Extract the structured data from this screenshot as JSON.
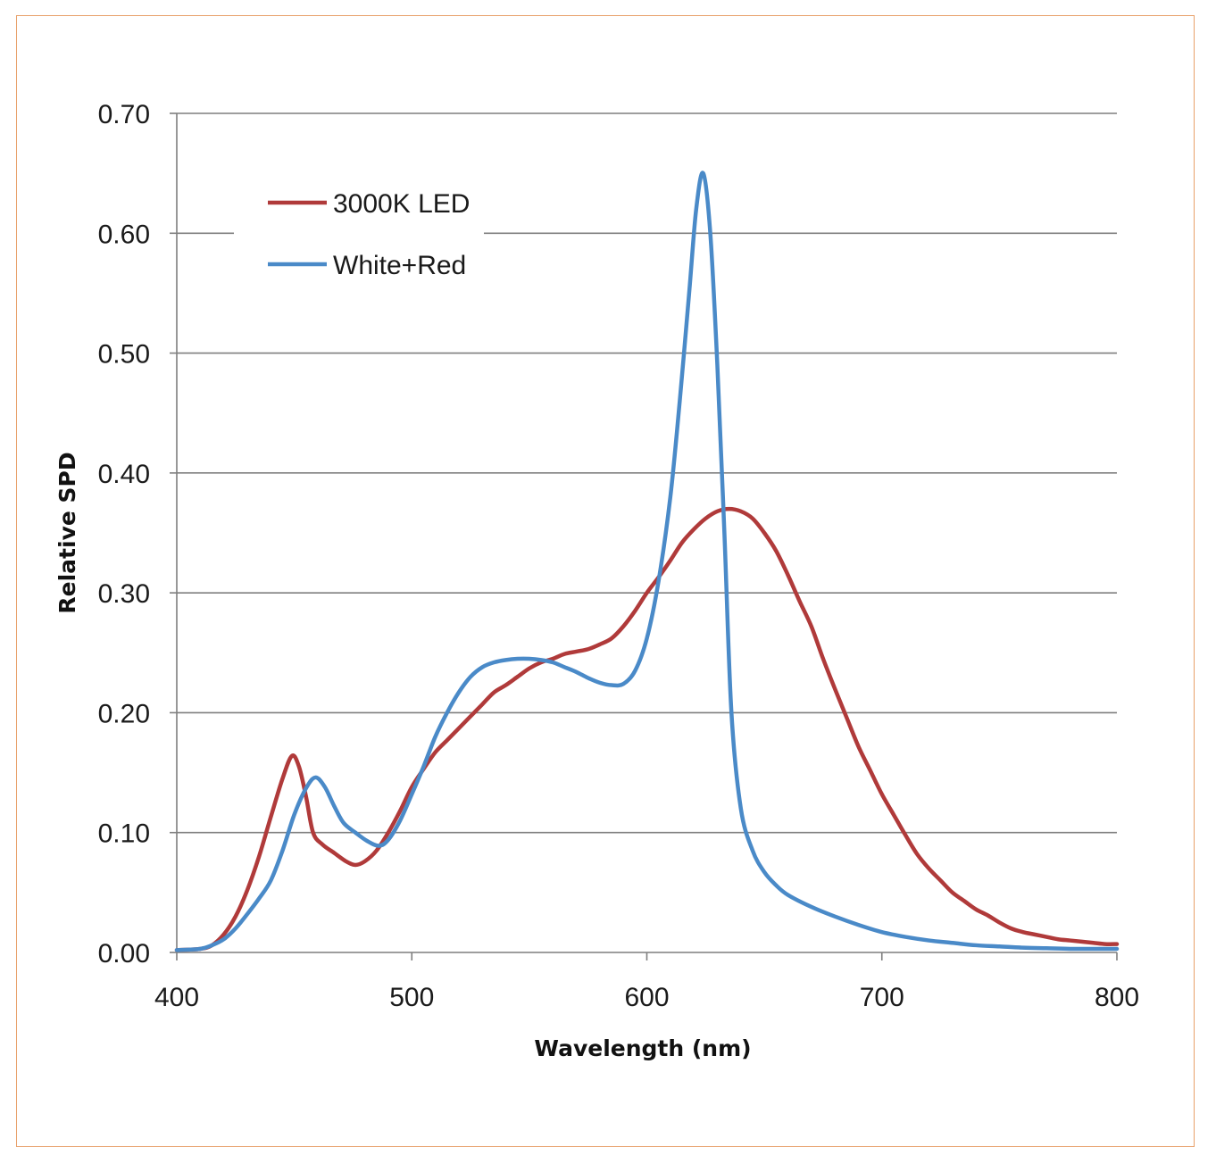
{
  "chart_data": {
    "type": "line",
    "xlabel": "Wavelength (nm)",
    "ylabel": "Relative SPD",
    "xlim": [
      400,
      800
    ],
    "ylim": [
      0,
      0.7
    ],
    "x_ticks": [
      "400",
      "500",
      "600",
      "700",
      "800"
    ],
    "y_ticks": [
      "0.00",
      "0.10",
      "0.20",
      "0.30",
      "0.40",
      "0.50",
      "0.60",
      "0.70"
    ],
    "grid": "horizontal",
    "legend_position": "top-left",
    "series": [
      {
        "name": "3000K LED",
        "color": "#b03a3a",
        "points": [
          [
            400,
            0.002
          ],
          [
            410,
            0.003
          ],
          [
            415,
            0.006
          ],
          [
            420,
            0.015
          ],
          [
            425,
            0.03
          ],
          [
            430,
            0.052
          ],
          [
            435,
            0.08
          ],
          [
            440,
            0.113
          ],
          [
            445,
            0.145
          ],
          [
            449,
            0.164
          ],
          [
            452,
            0.155
          ],
          [
            455,
            0.13
          ],
          [
            458,
            0.1
          ],
          [
            462,
            0.09
          ],
          [
            467,
            0.083
          ],
          [
            472,
            0.076
          ],
          [
            476,
            0.073
          ],
          [
            480,
            0.076
          ],
          [
            485,
            0.085
          ],
          [
            490,
            0.1
          ],
          [
            495,
            0.118
          ],
          [
            500,
            0.138
          ],
          [
            505,
            0.153
          ],
          [
            510,
            0.167
          ],
          [
            515,
            0.177
          ],
          [
            520,
            0.187
          ],
          [
            525,
            0.197
          ],
          [
            530,
            0.207
          ],
          [
            535,
            0.217
          ],
          [
            540,
            0.223
          ],
          [
            545,
            0.23
          ],
          [
            550,
            0.237
          ],
          [
            555,
            0.242
          ],
          [
            560,
            0.245
          ],
          [
            565,
            0.249
          ],
          [
            570,
            0.251
          ],
          [
            575,
            0.253
          ],
          [
            580,
            0.257
          ],
          [
            585,
            0.262
          ],
          [
            590,
            0.272
          ],
          [
            595,
            0.285
          ],
          [
            600,
            0.3
          ],
          [
            605,
            0.313
          ],
          [
            610,
            0.327
          ],
          [
            615,
            0.342
          ],
          [
            620,
            0.353
          ],
          [
            625,
            0.362
          ],
          [
            630,
            0.368
          ],
          [
            635,
            0.37
          ],
          [
            640,
            0.368
          ],
          [
            645,
            0.362
          ],
          [
            650,
            0.35
          ],
          [
            655,
            0.335
          ],
          [
            660,
            0.315
          ],
          [
            665,
            0.293
          ],
          [
            670,
            0.272
          ],
          [
            675,
            0.245
          ],
          [
            680,
            0.22
          ],
          [
            685,
            0.196
          ],
          [
            690,
            0.172
          ],
          [
            695,
            0.152
          ],
          [
            700,
            0.132
          ],
          [
            705,
            0.115
          ],
          [
            710,
            0.098
          ],
          [
            715,
            0.082
          ],
          [
            720,
            0.07
          ],
          [
            725,
            0.06
          ],
          [
            730,
            0.05
          ],
          [
            735,
            0.043
          ],
          [
            740,
            0.036
          ],
          [
            745,
            0.031
          ],
          [
            750,
            0.025
          ],
          [
            755,
            0.02
          ],
          [
            760,
            0.017
          ],
          [
            765,
            0.015
          ],
          [
            770,
            0.013
          ],
          [
            775,
            0.011
          ],
          [
            780,
            0.01
          ],
          [
            785,
            0.009
          ],
          [
            790,
            0.008
          ],
          [
            795,
            0.007
          ],
          [
            800,
            0.007
          ]
        ]
      },
      {
        "name": "White+Red",
        "color": "#4a8ac8",
        "points": [
          [
            400,
            0.002
          ],
          [
            410,
            0.003
          ],
          [
            415,
            0.006
          ],
          [
            420,
            0.011
          ],
          [
            425,
            0.02
          ],
          [
            430,
            0.032
          ],
          [
            435,
            0.045
          ],
          [
            440,
            0.06
          ],
          [
            445,
            0.085
          ],
          [
            450,
            0.115
          ],
          [
            455,
            0.137
          ],
          [
            459,
            0.146
          ],
          [
            463,
            0.138
          ],
          [
            467,
            0.122
          ],
          [
            471,
            0.108
          ],
          [
            476,
            0.1
          ],
          [
            481,
            0.093
          ],
          [
            486,
            0.089
          ],
          [
            490,
            0.094
          ],
          [
            495,
            0.11
          ],
          [
            500,
            0.132
          ],
          [
            505,
            0.155
          ],
          [
            510,
            0.18
          ],
          [
            515,
            0.2
          ],
          [
            520,
            0.217
          ],
          [
            525,
            0.23
          ],
          [
            530,
            0.238
          ],
          [
            535,
            0.242
          ],
          [
            540,
            0.244
          ],
          [
            545,
            0.245
          ],
          [
            550,
            0.245
          ],
          [
            555,
            0.244
          ],
          [
            560,
            0.242
          ],
          [
            565,
            0.238
          ],
          [
            570,
            0.234
          ],
          [
            575,
            0.229
          ],
          [
            580,
            0.225
          ],
          [
            585,
            0.223
          ],
          [
            590,
            0.224
          ],
          [
            595,
            0.235
          ],
          [
            600,
            0.262
          ],
          [
            605,
            0.31
          ],
          [
            610,
            0.38
          ],
          [
            614,
            0.46
          ],
          [
            618,
            0.55
          ],
          [
            621,
            0.62
          ],
          [
            624,
            0.65
          ],
          [
            627,
            0.6
          ],
          [
            630,
            0.49
          ],
          [
            633,
            0.35
          ],
          [
            636,
            0.2
          ],
          [
            640,
            0.12
          ],
          [
            645,
            0.085
          ],
          [
            650,
            0.067
          ],
          [
            655,
            0.056
          ],
          [
            660,
            0.048
          ],
          [
            670,
            0.038
          ],
          [
            680,
            0.03
          ],
          [
            690,
            0.023
          ],
          [
            700,
            0.017
          ],
          [
            710,
            0.013
          ],
          [
            720,
            0.01
          ],
          [
            730,
            0.008
          ],
          [
            740,
            0.006
          ],
          [
            750,
            0.005
          ],
          [
            760,
            0.004
          ],
          [
            770,
            0.0035
          ],
          [
            780,
            0.003
          ],
          [
            790,
            0.003
          ],
          [
            800,
            0.003
          ]
        ]
      }
    ]
  }
}
